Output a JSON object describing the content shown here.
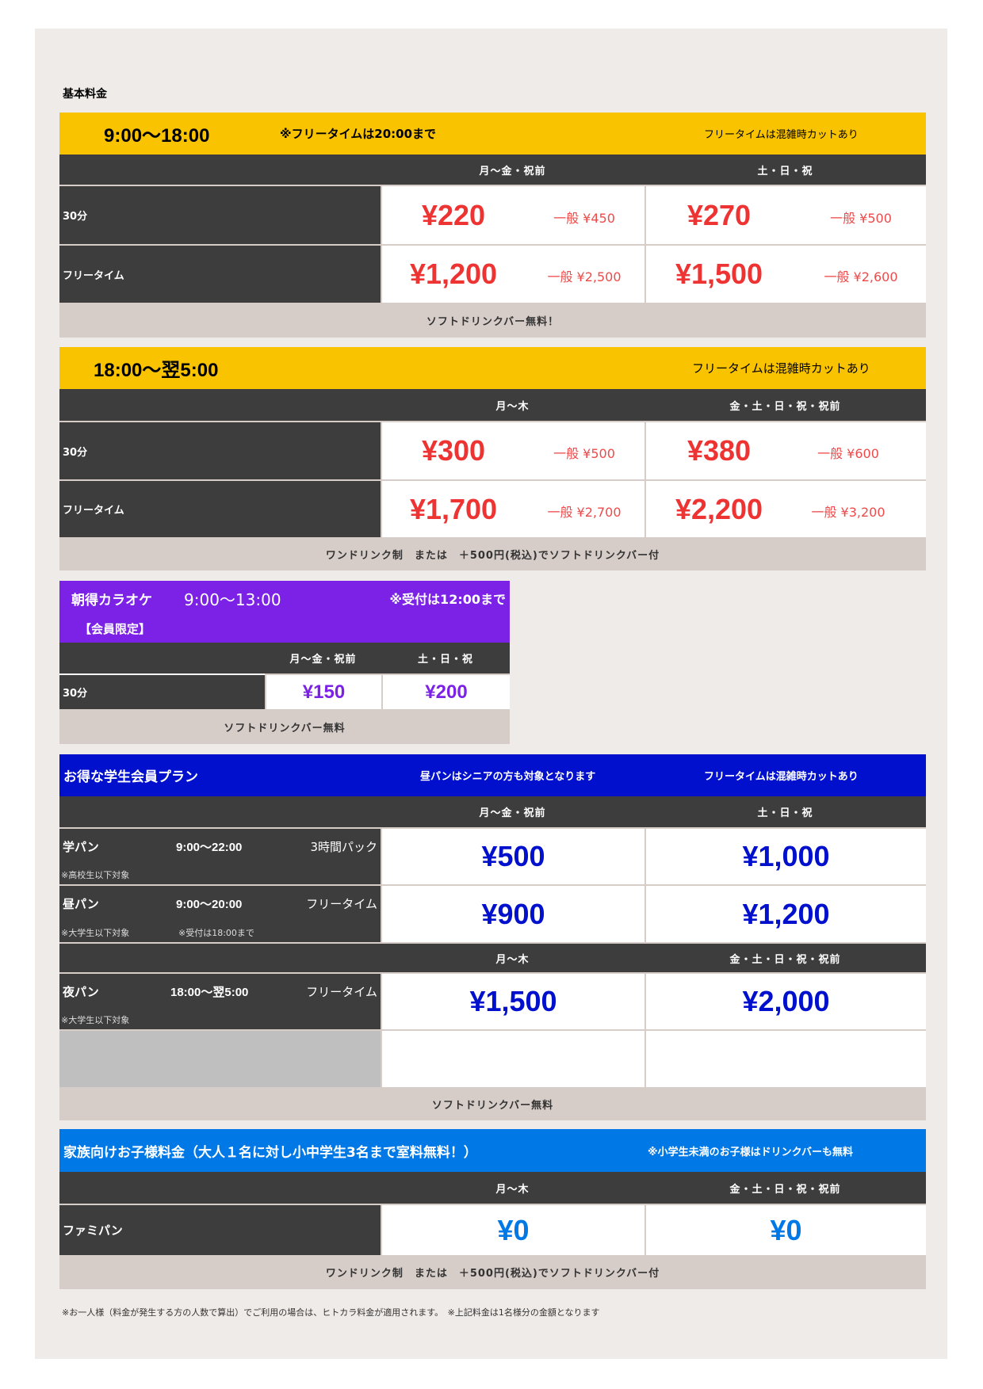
{
  "colors": {
    "yellow": "#f9c300",
    "dark": "#3d3d3d",
    "footer": "#d6ccc8",
    "panel": "#efebe8",
    "price_red": "#ee3333",
    "purple": "#7b22e6",
    "student_blue": "#0010cc",
    "family_blue": "#0078e6"
  },
  "page_title": "基本料金",
  "t1": {
    "time": "9:00～18:00",
    "note": "※フリータイムは20:00まで",
    "right_note": "フリータイムは混雑時カットあり",
    "cols": [
      "月～金・祝前",
      "土・日・祝"
    ],
    "rows": [
      {
        "label": "30分",
        "p1": "¥220",
        "g1": "一般 ¥450",
        "p2": "¥270",
        "g2": "一般 ¥500"
      },
      {
        "label": "フリータイム",
        "p1": "¥1,200",
        "g1": "一般 ¥2,500",
        "p2": "¥1,500",
        "g2": "一般 ¥2,600"
      }
    ],
    "footer": "ソフトドリンクバー無料！"
  },
  "t2": {
    "time": "18:00～翌5:00",
    "right_note": "フリータイムは混雑時カットあり",
    "cols": [
      "月～木",
      "金・土・日・祝・祝前"
    ],
    "rows": [
      {
        "label": "30分",
        "p1": "¥300",
        "g1": "一般 ¥500",
        "p2": "¥380",
        "g2": "一般 ¥600"
      },
      {
        "label": "フリータイム",
        "p1": "¥1,700",
        "g1": "一般 ¥2,700",
        "p2": "¥2,200",
        "g2": "一般 ¥3,200"
      }
    ],
    "footer": "ワンドリンク制　または　＋500円(税込)でソフトドリンクバー付"
  },
  "t3": {
    "title": "朝得カラオケ",
    "time": "9:00～13:00",
    "note": "※受付は12:00まで",
    "members": "【会員限定】",
    "cols": [
      "月～金・祝前",
      "土・日・祝"
    ],
    "row": {
      "label": "30分",
      "p1": "¥150",
      "p2": "¥200"
    },
    "footer": "ソフトドリンクバー無料"
  },
  "t4": {
    "title": "お得な学生会員プラン",
    "center_note": "昼パンはシニアの方も対象となります",
    "right_note": "フリータイムは混雑時カットあり",
    "cols": [
      "月～金・祝前",
      "土・日・祝"
    ],
    "cols2": [
      "月～木",
      "金・土・日・祝・祝前"
    ],
    "rows": [
      {
        "name": "学パン",
        "time": "9:00～22:00",
        "type": "3時間パック",
        "target": "※高校生以下対象",
        "extra": "",
        "p1": "¥500",
        "p2": "¥1,000"
      },
      {
        "name": "昼パン",
        "time": "9:00～20:00",
        "type": "フリータイム",
        "target": "※大学生以下対象",
        "extra": "※受付は18:00まで",
        "p1": "¥900",
        "p2": "¥1,200"
      },
      {
        "name": "夜パン",
        "time": "18:00～翌5:00",
        "type": "フリータイム",
        "target": "※大学生以下対象",
        "extra": "",
        "p1": "¥1,500",
        "p2": "¥2,000"
      }
    ],
    "footer": "ソフトドリンクバー無料"
  },
  "t5": {
    "title": "家族向けお子様料金（大人１名に対し小中学生3名まで室料無料！）",
    "right_note": "※小学生未満のお子様はドリンクバーも無料",
    "cols": [
      "月～木",
      "金・土・日・祝・祝前"
    ],
    "row": {
      "label": "ファミパン",
      "p1": "¥0",
      "p2": "¥0"
    },
    "footer": "ワンドリンク制　または　＋500円(税込)でソフトドリンクバー付"
  },
  "footnote": "※お一人様（料金が発生する方の人数で算出）でご利用の場合は、ヒトカラ料金が適用されます。　※上記料金は1名様分の金額となります"
}
